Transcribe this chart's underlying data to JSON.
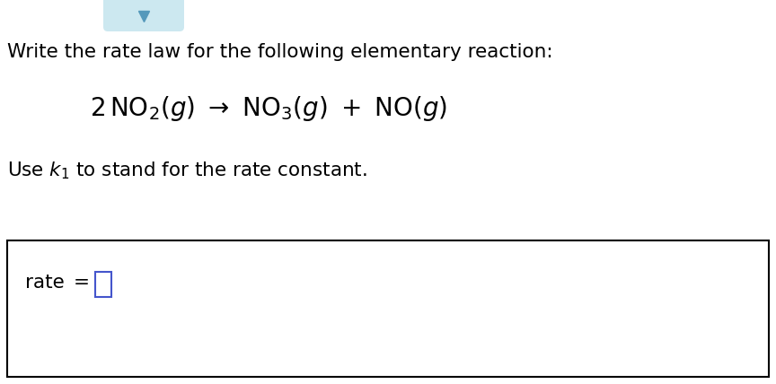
{
  "bg_color": "#ffffff",
  "text_color": "#000000",
  "blue_color": "#4455cc",
  "box_color": "#000000",
  "line1": "Write the rate law for the following elementary reaction:",
  "line1_fontsize": 15.5,
  "reaction_fontsize": 20,
  "use_line_fontsize": 15.5,
  "rate_fontsize": 15.5,
  "figsize": [
    8.64,
    4.28
  ],
  "dpi": 100
}
